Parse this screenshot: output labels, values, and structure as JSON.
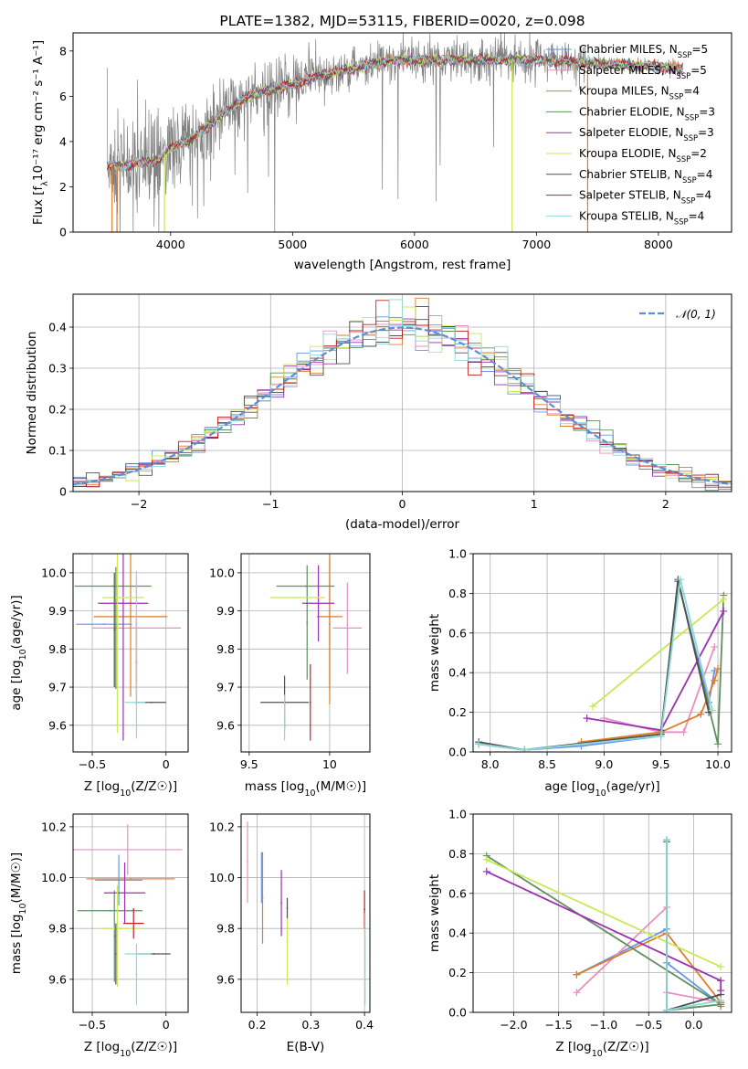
{
  "chart_data": [
    {
      "id": "spectrum",
      "type": "line",
      "title": "PLATE=1382, MJD=53115, FIBERID=0020, z=0.098",
      "xlabel": "wavelength [Angstrom, rest frame]",
      "ylabel_pre": "Flux [f",
      "ylabel_sub": "λ",
      "ylabel_post": "10⁻¹⁷ erg cm⁻² s⁻¹ A⁻¹]",
      "xlim": [
        3200,
        8600
      ],
      "ylim": [
        0,
        8.8
      ],
      "xticks": [
        4000,
        5000,
        6000,
        7000,
        8000
      ],
      "yticks": [
        0,
        2,
        4,
        6,
        8
      ],
      "grid": false,
      "legend_position": "top-right",
      "data_series": {
        "name": "data",
        "color": "#808080",
        "x_range": [
          3480,
          8200
        ],
        "continuum": [
          [
            3480,
            2.9
          ],
          [
            3700,
            3.0
          ],
          [
            3900,
            3.2
          ],
          [
            4000,
            3.7
          ],
          [
            4200,
            4.2
          ],
          [
            4400,
            5.1
          ],
          [
            4600,
            5.9
          ],
          [
            4800,
            6.3
          ],
          [
            5000,
            6.5
          ],
          [
            5200,
            6.9
          ],
          [
            5500,
            7.2
          ],
          [
            5800,
            7.6
          ],
          [
            6100,
            7.6
          ],
          [
            6400,
            7.6
          ],
          [
            6700,
            7.6
          ],
          [
            7000,
            7.6
          ],
          [
            7400,
            7.5
          ],
          [
            7700,
            7.4
          ],
          [
            8000,
            7.3
          ],
          [
            8200,
            7.2
          ]
        ]
      },
      "legend": [
        {
          "pre": "Chabrier MILES, N",
          "sub": "SSP",
          "post": "=5",
          "color": "#6495ed"
        },
        {
          "pre": "Salpeter MILES, N",
          "sub": "SSP",
          "post": "=5",
          "color": "#e98fc0"
        },
        {
          "pre": "Kroupa MILES, N",
          "sub": "SSP",
          "post": "=4",
          "color": "#e07b27"
        },
        {
          "pre": "Chabrier ELODIE, N",
          "sub": "SSP",
          "post": "=3",
          "color": "#5f8f5f"
        },
        {
          "pre": "Salpeter ELODIE, N",
          "sub": "SSP",
          "post": "=3",
          "color": "#9b30b0"
        },
        {
          "pre": "Kroupa ELODIE, N",
          "sub": "SSP",
          "post": "=2",
          "color": "#c8e855"
        },
        {
          "pre": "Chabrier STELIB, N",
          "sub": "SSP",
          "post": "=4",
          "color": "#505050"
        },
        {
          "pre": "Salpeter STELIB, N",
          "sub": "SSP",
          "post": "=4",
          "color": "#c02020"
        },
        {
          "pre": "Kroupa STELIB, N",
          "sub": "SSP",
          "post": "=4",
          "color": "#8fd8d8"
        }
      ]
    },
    {
      "id": "residuals",
      "type": "histogram",
      "xlabel": "(data-model)/error",
      "ylabel": "Normed distribution",
      "xlim": [
        -2.5,
        2.5
      ],
      "ylim": [
        0,
        0.48
      ],
      "xticks": [
        -2,
        -1,
        0,
        1,
        2
      ],
      "yticks": [
        0.0,
        0.1,
        0.2,
        0.3,
        0.4
      ],
      "grid": true,
      "legend_position": "top-right",
      "legend": [
        {
          "label": "𝒩(0, 1)",
          "color": "#5a8fd8",
          "dashed": true
        }
      ],
      "bin_width": 0.1,
      "hist_colors": [
        "#6495ed",
        "#e98fc0",
        "#e07b27",
        "#5f8f5f",
        "#9b30b0",
        "#c8e855",
        "#505050",
        "#c02020",
        "#8fd8d8"
      ]
    },
    {
      "id": "age_vs_Z",
      "type": "errorbar",
      "xlabel_pre": "Z [log",
      "xlabel_sub": "10",
      "xlabel_post": "(Z/Z☉)]",
      "ylabel_pre": "age  [log",
      "ylabel_sub": "10",
      "ylabel_post": "(age/yr)]",
      "xlim": [
        -0.63,
        0.15
      ],
      "ylim": [
        9.53,
        10.05
      ],
      "xticks": [
        -0.5,
        0.0
      ],
      "yticks": [
        9.6,
        9.7,
        9.8,
        9.9,
        10.0
      ],
      "ytick_decimals": 1,
      "grid": true,
      "points": [
        {
          "x": -0.42,
          "y": 9.865,
          "xerr": 0.19,
          "yerr": 0.0,
          "c": "#6495ed"
        },
        {
          "x": -0.2,
          "y": 9.855,
          "xerr": 0.3,
          "yerr": 0.14,
          "c": "#e98fc0"
        },
        {
          "x": -0.24,
          "y": 9.885,
          "xerr": 0.25,
          "yerr": 0.21,
          "c": "#e07b27"
        },
        {
          "x": -0.36,
          "y": 9.965,
          "xerr": 0.26,
          "yerr": 0.0,
          "c": "#5f8f5f"
        },
        {
          "x": -0.34,
          "y": 9.855,
          "xerr": 0.0,
          "yerr": 0.16,
          "c": "#5f8f5f"
        },
        {
          "x": -0.29,
          "y": 9.92,
          "xerr": 0.17,
          "yerr": 0.36,
          "c": "#9b30b0"
        },
        {
          "x": -0.29,
          "y": 9.935,
          "xerr": 0.14,
          "yerr": 0.0,
          "c": "#c8e855"
        },
        {
          "x": -0.33,
          "y": 9.86,
          "xerr": 0.0,
          "yerr": 0.28,
          "c": "#c8e855"
        },
        {
          "x": -0.1,
          "y": 9.66,
          "xerr": 0.1,
          "yerr": 0.0,
          "c": "#505050"
        },
        {
          "x": -0.35,
          "y": 9.85,
          "xerr": 0.0,
          "yerr": 0.15,
          "c": "#505050"
        },
        {
          "x": -0.2,
          "y": 9.765,
          "xerr": 0.0,
          "yerr": 0.11,
          "c": "#c02020"
        },
        {
          "x": -0.21,
          "y": 9.66,
          "xerr": 0.07,
          "yerr": 0.0,
          "c": "#8fd8d8"
        },
        {
          "x": -0.2,
          "y": 9.785,
          "xerr": 0.0,
          "yerr": 0.22,
          "c": "#8fd8d8"
        }
      ]
    },
    {
      "id": "age_vs_mass",
      "type": "errorbar",
      "xlabel_pre": "mass [log",
      "xlabel_sub": "10",
      "xlabel_post": "(M/M☉)]",
      "ylabel_pre": "",
      "ylabel_sub": "",
      "ylabel_post": "",
      "xlim": [
        9.45,
        10.25
      ],
      "ylim": [
        9.53,
        10.05
      ],
      "xticks": [
        9.5,
        10.0
      ],
      "yticks": [
        9.6,
        9.7,
        9.8,
        9.9,
        10.0
      ],
      "ytick_decimals": 1,
      "grid": true,
      "points": [
        {
          "x": 10.0,
          "y": 9.865,
          "xerr": 0.0,
          "yerr": 0.17,
          "c": "#6495ed"
        },
        {
          "x": 10.11,
          "y": 9.855,
          "xerr": 0.09,
          "yerr": 0.12,
          "c": "#e98fc0"
        },
        {
          "x": 10.0,
          "y": 9.885,
          "xerr": 0.08,
          "yerr": 0.23,
          "c": "#e07b27"
        },
        {
          "x": 9.85,
          "y": 9.965,
          "xerr": 0.18,
          "yerr": 0.0,
          "c": "#5f8f5f"
        },
        {
          "x": 9.86,
          "y": 9.87,
          "xerr": 0.0,
          "yerr": 0.15,
          "c": "#5f8f5f"
        },
        {
          "x": 9.93,
          "y": 9.92,
          "xerr": 0.1,
          "yerr": 0.1,
          "c": "#9b30b0"
        },
        {
          "x": 9.8,
          "y": 9.935,
          "xerr": 0.17,
          "yerr": 0.0,
          "c": "#c8e855"
        },
        {
          "x": 9.72,
          "y": 9.66,
          "xerr": 0.15,
          "yerr": 0.07,
          "c": "#505050"
        },
        {
          "x": 9.88,
          "y": 9.66,
          "xerr": 0.0,
          "yerr": 0.1,
          "c": "#c02020"
        },
        {
          "x": 9.72,
          "y": 9.62,
          "xerr": 0.0,
          "yerr": 0.06,
          "c": "#8fd8d8"
        }
      ]
    },
    {
      "id": "weight_vs_age",
      "type": "line",
      "xlabel_pre": "age  [log",
      "xlabel_sub": "10",
      "xlabel_post": "(age/yr)]",
      "ylabel_pre": "mass weight",
      "ylabel_sub": "",
      "ylabel_post": "",
      "xlim": [
        7.85,
        10.12
      ],
      "ylim": [
        0,
        1.0
      ],
      "xticks": [
        8.0,
        8.5,
        9.0,
        9.5,
        10.0
      ],
      "xtick_decimals": 1,
      "yticks": [
        0.0,
        0.2,
        0.4,
        0.6,
        0.8,
        1.0
      ],
      "ytick_decimals": 1,
      "grid": true,
      "series": [
        {
          "c": "#6495ed",
          "pts": [
            [
              7.9,
              0.04
            ],
            [
              8.3,
              0.01
            ],
            [
              8.8,
              0.03
            ],
            [
              9.5,
              0.08
            ],
            [
              9.65,
              0.86
            ],
            [
              9.92,
              0.25
            ],
            [
              9.97,
              0.41
            ]
          ]
        },
        {
          "c": "#e98fc0",
          "pts": [
            [
              9.0,
              0.17
            ],
            [
              9.5,
              0.1
            ],
            [
              9.7,
              0.1
            ],
            [
              9.97,
              0.53
            ]
          ]
        },
        {
          "c": "#e07b27",
          "pts": [
            [
              8.8,
              0.05
            ],
            [
              9.5,
              0.1
            ],
            [
              9.85,
              0.19
            ],
            [
              9.97,
              0.36
            ],
            [
              10.0,
              0.42
            ]
          ]
        },
        {
          "c": "#5f8f5f",
          "pts": [
            [
              7.9,
              0.04
            ],
            [
              8.3,
              0.01
            ],
            [
              9.5,
              0.09
            ],
            [
              9.65,
              0.86
            ],
            [
              10.0,
              0.04
            ],
            [
              10.05,
              0.79
            ]
          ]
        },
        {
          "c": "#9b30b0",
          "pts": [
            [
              8.85,
              0.17
            ],
            [
              9.5,
              0.11
            ],
            [
              10.05,
              0.71
            ]
          ]
        },
        {
          "c": "#c8e855",
          "pts": [
            [
              8.9,
              0.23
            ],
            [
              10.05,
              0.77
            ]
          ]
        },
        {
          "c": "#505050",
          "pts": [
            [
              7.9,
              0.05
            ],
            [
              8.3,
              0.01
            ],
            [
              9.5,
              0.09
            ],
            [
              9.65,
              0.87
            ],
            [
              9.92,
              0.2
            ]
          ]
        },
        {
          "c": "#8fd8d8",
          "pts": [
            [
              7.9,
              0.04
            ],
            [
              8.3,
              0.01
            ],
            [
              9.5,
              0.08
            ],
            [
              9.67,
              0.87
            ],
            [
              9.95,
              0.21
            ]
          ]
        }
      ]
    },
    {
      "id": "mass_vs_Z",
      "type": "errorbar",
      "xlabel_pre": "Z [log",
      "xlabel_sub": "10",
      "xlabel_post": "(Z/Z☉)]",
      "ylabel_pre": "mass [log",
      "ylabel_sub": "10",
      "ylabel_post": "(M/M☉)]",
      "xlim": [
        -0.63,
        0.15
      ],
      "ylim": [
        9.47,
        10.25
      ],
      "xticks": [
        -0.5,
        0.0
      ],
      "yticks": [
        9.6,
        9.8,
        10.0,
        10.2
      ],
      "ytick_decimals": 1,
      "grid": true,
      "points": [
        {
          "x": -0.32,
          "y": 9.99,
          "xerr": 0.16,
          "yerr": 0.1,
          "c": "#6495ed"
        },
        {
          "x": -0.26,
          "y": 10.11,
          "xerr": 0.37,
          "yerr": 0.1,
          "c": "#e98fc0"
        },
        {
          "x": -0.24,
          "y": 9.995,
          "xerr": 0.3,
          "yerr": 0.0,
          "c": "#e07b27"
        },
        {
          "x": -0.38,
          "y": 9.87,
          "xerr": 0.22,
          "yerr": 0.0,
          "c": "#5f8f5f"
        },
        {
          "x": -0.35,
          "y": 9.77,
          "xerr": 0.0,
          "yerr": 0.18,
          "c": "#5f8f5f"
        },
        {
          "x": -0.28,
          "y": 9.94,
          "xerr": 0.14,
          "yerr": 0.12,
          "c": "#9b30b0"
        },
        {
          "x": -0.31,
          "y": 9.8,
          "xerr": 0.14,
          "yerr": 0.0,
          "c": "#c8e855"
        },
        {
          "x": -0.33,
          "y": 9.77,
          "xerr": 0.0,
          "yerr": 0.2,
          "c": "#c8e855"
        },
        {
          "x": -0.08,
          "y": 9.7,
          "xerr": 0.11,
          "yerr": 0.0,
          "c": "#505050"
        },
        {
          "x": -0.34,
          "y": 9.7,
          "xerr": 0.0,
          "yerr": 0.12,
          "c": "#505050"
        },
        {
          "x": -0.22,
          "y": 9.82,
          "xerr": 0.07,
          "yerr": 0.06,
          "c": "#c02020"
        },
        {
          "x": -0.19,
          "y": 9.7,
          "xerr": 0.09,
          "yerr": 0.0,
          "c": "#8fd8d8"
        },
        {
          "x": -0.2,
          "y": 9.62,
          "xerr": 0.0,
          "yerr": 0.12,
          "c": "#8fd8d8"
        }
      ]
    },
    {
      "id": "mass_vs_ebv",
      "type": "errorbar",
      "xlabel_pre": "E(B-V)",
      "xlabel_sub": "",
      "xlabel_post": "",
      "ylabel_pre": "",
      "ylabel_sub": "",
      "ylabel_post": "",
      "xlim": [
        0.17,
        0.41
      ],
      "ylim": [
        9.47,
        10.25
      ],
      "xticks": [
        0.2,
        0.3,
        0.4
      ],
      "xtick_decimals": 1,
      "yticks": [
        9.6,
        9.8,
        10.0,
        10.2
      ],
      "ytick_decimals": 1,
      "grid": true,
      "points": [
        {
          "x": 0.208,
          "y": 10.0,
          "xerr": 0.0,
          "yerr": 0.1,
          "c": "#6495ed"
        },
        {
          "x": 0.182,
          "y": 10.06,
          "xerr": 0.0,
          "yerr": 0.16,
          "c": "#e98fc0"
        },
        {
          "x": 0.21,
          "y": 9.92,
          "xerr": 0.0,
          "yerr": 0.18,
          "c": "#e07b27"
        },
        {
          "x": 0.245,
          "y": 9.9,
          "xerr": 0.0,
          "yerr": 0.13,
          "c": "#9b30b0"
        },
        {
          "x": 0.256,
          "y": 9.75,
          "xerr": 0.0,
          "yerr": 0.17,
          "c": "#c8e855"
        },
        {
          "x": 0.256,
          "y": 9.88,
          "xerr": 0.0,
          "yerr": 0.04,
          "c": "#505050"
        },
        {
          "x": 0.4,
          "y": 9.875,
          "xerr": 0.0,
          "yerr": 0.075,
          "c": "#c02020"
        },
        {
          "x": 0.401,
          "y": 9.68,
          "xerr": 0.0,
          "yerr": 0.18,
          "c": "#8fd8d8"
        }
      ]
    },
    {
      "id": "weight_vs_Z",
      "type": "line",
      "xlabel_pre": "Z [log",
      "xlabel_sub": "10",
      "xlabel_post": "(Z/Z☉)]",
      "ylabel_pre": "mass weight",
      "ylabel_sub": "",
      "ylabel_post": "",
      "xlim": [
        -2.45,
        0.42
      ],
      "ylim": [
        0,
        1.0
      ],
      "xticks": [
        -2.0,
        -1.5,
        -1.0,
        -0.5,
        0.0
      ],
      "xtick_decimals": 1,
      "yticks": [
        0.0,
        0.2,
        0.4,
        0.6,
        0.8,
        1.0
      ],
      "ytick_decimals": 1,
      "grid": true,
      "series": [
        {
          "c": "#6495ed",
          "pts": [
            [
              -1.3,
              0.19
            ],
            [
              -0.3,
              0.42
            ],
            [
              -0.3,
              0.86
            ],
            [
              -0.3,
              0.25
            ],
            [
              0.3,
              0.04
            ]
          ]
        },
        {
          "c": "#e98fc0",
          "pts": [
            [
              -1.3,
              0.1
            ],
            [
              -0.3,
              0.53
            ],
            [
              -0.3,
              0.1
            ],
            [
              0.3,
              0.05
            ]
          ]
        },
        {
          "c": "#e07b27",
          "pts": [
            [
              -1.3,
              0.19
            ],
            [
              -0.3,
              0.4
            ],
            [
              0.3,
              0.05
            ],
            [
              0.3,
              0.03
            ]
          ]
        },
        {
          "c": "#5f8f5f",
          "pts": [
            [
              -2.3,
              0.79
            ],
            [
              0.3,
              0.04
            ],
            [
              -0.3,
              0.01
            ],
            [
              -0.3,
              0.86
            ]
          ]
        },
        {
          "c": "#9b30b0",
          "pts": [
            [
              -2.3,
              0.71
            ],
            [
              0.3,
              0.16
            ],
            [
              0.3,
              0.11
            ]
          ]
        },
        {
          "c": "#c8e855",
          "pts": [
            [
              -2.3,
              0.77
            ],
            [
              0.3,
              0.23
            ]
          ]
        },
        {
          "c": "#505050",
          "pts": [
            [
              -0.3,
              0.87
            ],
            [
              -0.3,
              0.01
            ],
            [
              0.3,
              0.09
            ]
          ]
        },
        {
          "c": "#8fd8d8",
          "pts": [
            [
              -0.3,
              0.87
            ],
            [
              -0.3,
              0.01
            ],
            [
              0.3,
              0.06
            ]
          ]
        }
      ]
    }
  ]
}
